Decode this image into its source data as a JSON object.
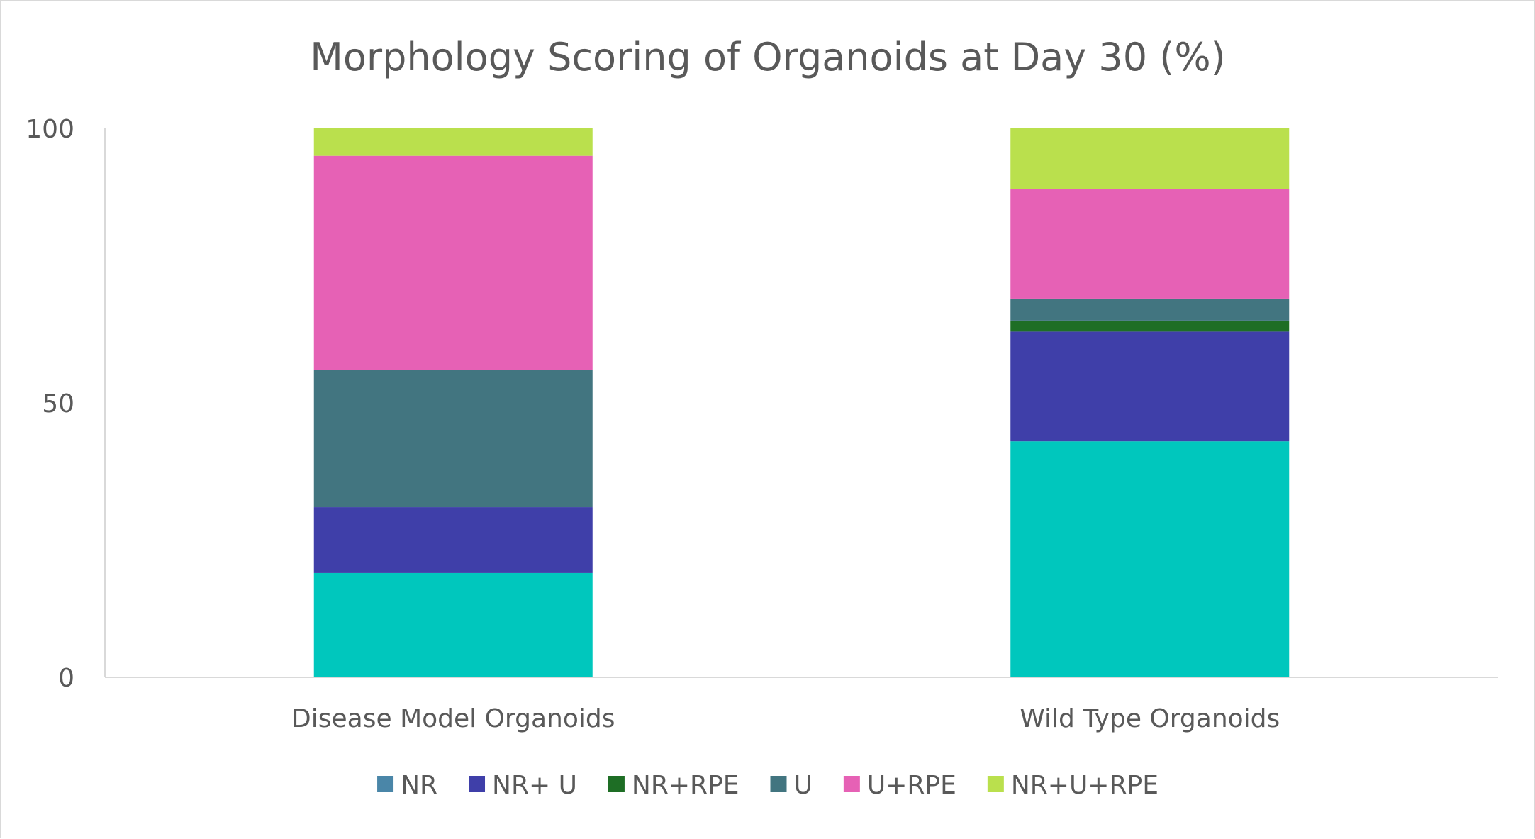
{
  "chart_data": {
    "type": "bar",
    "stacked": true,
    "title": "Morphology Scoring  of Organoids at Day 30 (%)",
    "xlabel": "",
    "ylabel": "",
    "ylim": [
      0,
      100
    ],
    "yticks": [
      0,
      50,
      100
    ],
    "categories": [
      "Disease Model Organoids",
      "Wild Type Organoids"
    ],
    "series": [
      {
        "name": "NR",
        "color": "#4a86a8",
        "fill_color": "#00c7bd",
        "values": [
          19,
          43
        ]
      },
      {
        "name": "NR+ U",
        "color": "#3f3fa9",
        "values": [
          12,
          20
        ]
      },
      {
        "name": "NR+RPE",
        "color": "#1e6e25",
        "values": [
          0,
          2
        ]
      },
      {
        "name": "U",
        "color": "#427580",
        "values": [
          25,
          4
        ]
      },
      {
        "name": "U+RPE",
        "color": "#e661b5",
        "values": [
          39,
          20
        ]
      },
      {
        "name": "NR+U+RPE",
        "color": "#bae04d",
        "values": [
          5,
          11
        ]
      }
    ],
    "legend_position": "bottom",
    "grid": false
  }
}
